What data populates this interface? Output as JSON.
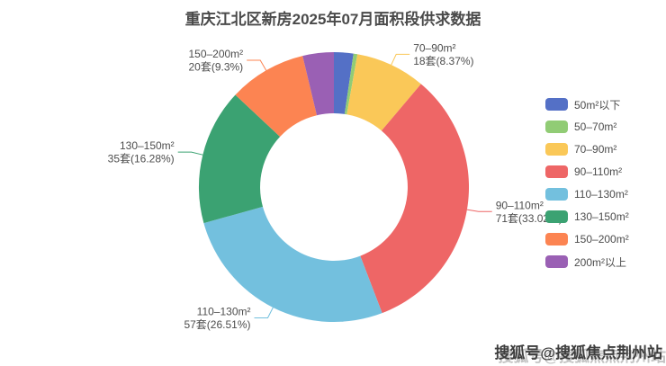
{
  "page_title": "重庆江北区新房2025年07月面积段供求数据",
  "watermark": {
    "text": "搜狐号@搜狐焦点荆州站"
  },
  "chart_data": {
    "type": "pie",
    "variant": "donut",
    "title": "重庆江北区新房2025年07月面积段供求数据",
    "unit": "套",
    "start_angle": "top",
    "direction": "clockwise",
    "legend_position": "right",
    "series": [
      {
        "name": "50m²以下",
        "value": 5,
        "percent": 2.33,
        "color": "#5470c6",
        "label": ""
      },
      {
        "name": "50–70m²",
        "value": 1,
        "percent": 0.47,
        "color": "#91cc75",
        "label": ""
      },
      {
        "name": "70–90m²",
        "value": 18,
        "percent": 8.37,
        "color": "#fac858",
        "label": "18套(8.37%)"
      },
      {
        "name": "90–110m²",
        "value": 71,
        "percent": 33.02,
        "color": "#ee6666",
        "label": "71套(33.02%)"
      },
      {
        "name": "110–130m²",
        "value": 57,
        "percent": 26.51,
        "color": "#73c0de",
        "label": "57套(26.51%)"
      },
      {
        "name": "130–150m²",
        "value": 35,
        "percent": 16.28,
        "color": "#3ba272",
        "label": "35套(16.28%)"
      },
      {
        "name": "150–200m²",
        "value": 20,
        "percent": 9.3,
        "color": "#fc8452",
        "label": "20套(9.3%)"
      },
      {
        "name": "200m²以上",
        "value": 8,
        "percent": 3.72,
        "color": "#9a60b4",
        "label": ""
      }
    ]
  }
}
